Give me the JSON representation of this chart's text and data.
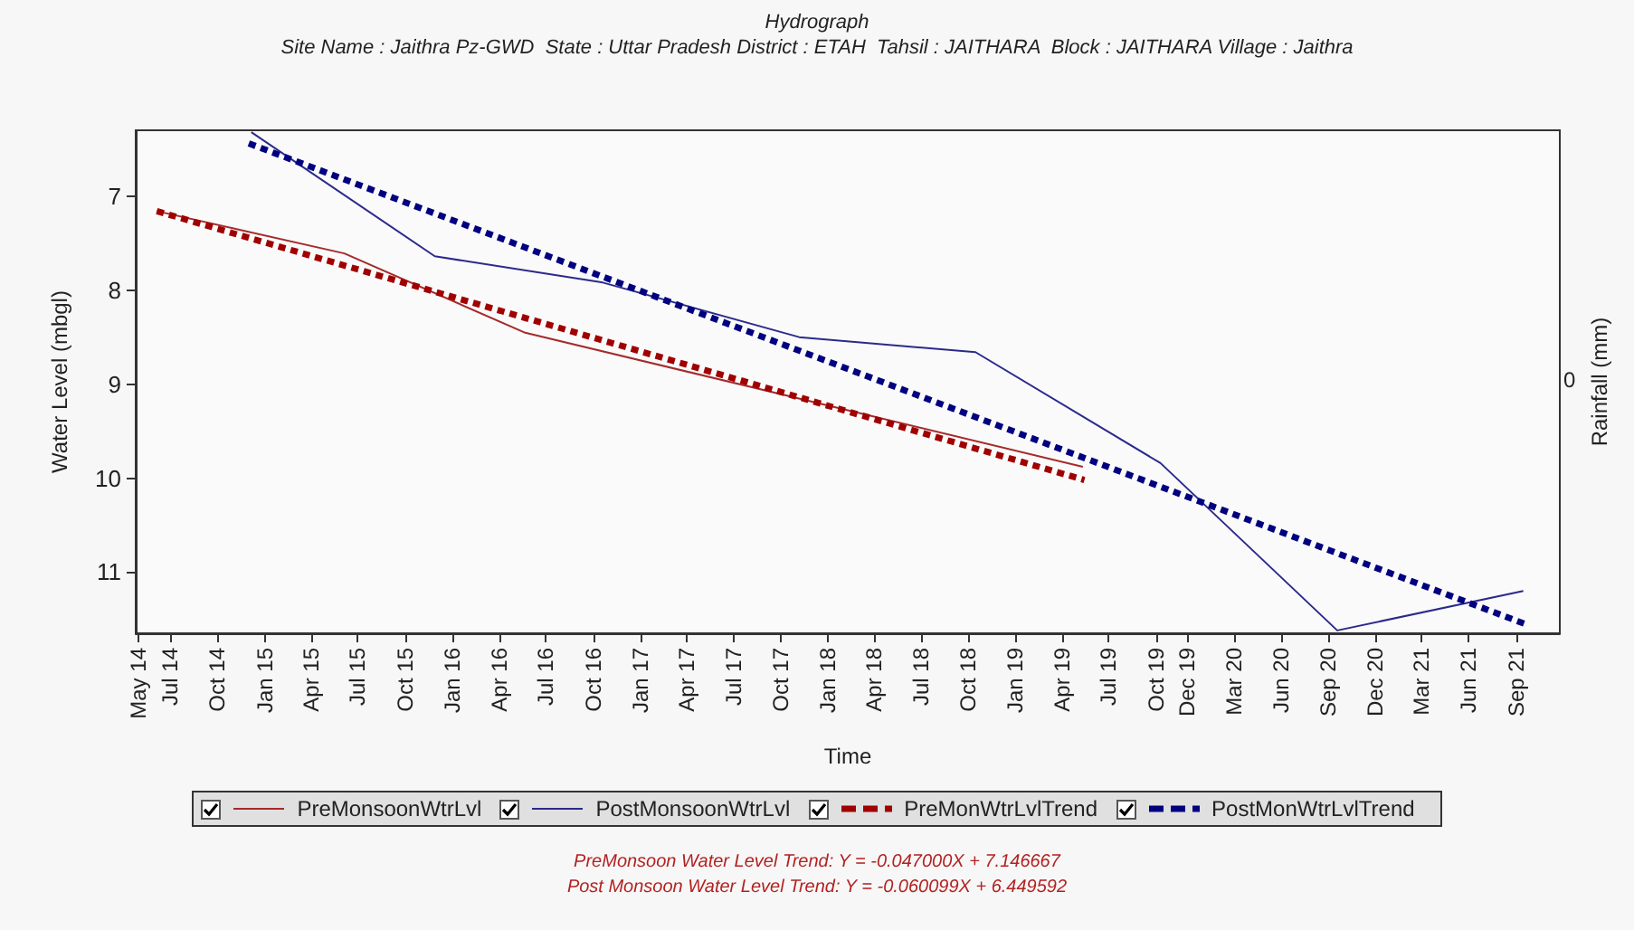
{
  "chart_data": {
    "type": "line",
    "title": "Hydrograph",
    "subtitle": "Site Name : Jaithra Pz-GWD  State : Uttar Pradesh District : ETAH  Tahsil : JAITHARA  Block : JAITHARA Village : Jaithra",
    "xlabel": "Time",
    "ylabel": "Water Level (mbgl)",
    "y2label": "Rainfall (mm)",
    "annotations": [
      "0",
      "PreMonsoon Water Level Trend: Y = -0.047000X + 7.146667",
      "Post Monsoon Water Level Trend: Y = -0.060099X + 6.449592"
    ],
    "xlim": [
      "2014-04-25",
      "2021-11-25"
    ],
    "xticks": [
      {
        "value": "2014-05",
        "label": "May 14"
      },
      {
        "value": "2014-07",
        "label": "Jul 14"
      },
      {
        "value": "2014-10",
        "label": "Oct 14"
      },
      {
        "value": "2015-01",
        "label": "Jan 15"
      },
      {
        "value": "2015-04",
        "label": "Apr 15"
      },
      {
        "value": "2015-07",
        "label": "Jul 15"
      },
      {
        "value": "2015-10",
        "label": "Oct 15"
      },
      {
        "value": "2016-01",
        "label": "Jan 16"
      },
      {
        "value": "2016-04",
        "label": "Apr 16"
      },
      {
        "value": "2016-07",
        "label": "Jul 16"
      },
      {
        "value": "2016-10",
        "label": "Oct 16"
      },
      {
        "value": "2017-01",
        "label": "Jan 17"
      },
      {
        "value": "2017-04",
        "label": "Apr 17"
      },
      {
        "value": "2017-07",
        "label": "Jul 17"
      },
      {
        "value": "2017-10",
        "label": "Oct 17"
      },
      {
        "value": "2018-01",
        "label": "Jan 18"
      },
      {
        "value": "2018-04",
        "label": "Apr 18"
      },
      {
        "value": "2018-07",
        "label": "Jul 18"
      },
      {
        "value": "2018-10",
        "label": "Oct 18"
      },
      {
        "value": "2019-01",
        "label": "Jan 19"
      },
      {
        "value": "2019-04",
        "label": "Apr 19"
      },
      {
        "value": "2019-07",
        "label": "Jul 19"
      },
      {
        "value": "2019-10",
        "label": "Oct 19"
      },
      {
        "value": "2019-12",
        "label": "Dec 19"
      },
      {
        "value": "2020-03",
        "label": "Mar 20"
      },
      {
        "value": "2020-06",
        "label": "Jun 20"
      },
      {
        "value": "2020-09",
        "label": "Sep 20"
      },
      {
        "value": "2020-12",
        "label": "Dec 20"
      },
      {
        "value": "2021-03",
        "label": "Mar 21"
      },
      {
        "value": "2021-06",
        "label": "Jun 21"
      },
      {
        "value": "2021-09",
        "label": "Sep 21"
      }
    ],
    "ylim": [
      11.65,
      6.3
    ],
    "yticks": [
      7,
      8,
      9,
      10,
      11
    ],
    "grid": false,
    "legend": "bottom",
    "marker": "none",
    "series": [
      {
        "name": "PreMonsoonWtrLvl",
        "color": "#a52a2a",
        "line_style": "solid",
        "x": [
          "2014-06-05",
          "2015-06-05",
          "2016-05-20",
          "2019-05-12"
        ],
        "values": [
          7.16,
          7.61,
          8.45,
          9.88
        ]
      },
      {
        "name": "PostMonsoonWtrLvl",
        "color": "#2a2a8c",
        "line_style": "solid",
        "x": [
          "2014-12-06",
          "2015-11-28",
          "2016-10-20",
          "2017-11-06",
          "2018-10-15",
          "2019-10-10",
          "2020-09-18",
          "2021-09-15"
        ],
        "values": [
          6.32,
          7.64,
          7.92,
          8.5,
          8.66,
          9.84,
          11.62,
          11.2
        ]
      },
      {
        "name": "PreMonWtrLvlTrend",
        "color": "#a00000",
        "line_style": "dashed",
        "x": [
          "2014-06-05",
          "2019-05-15"
        ],
        "values": [
          7.16,
          10.02
        ]
      },
      {
        "name": "PostMonWtrLvlTrend",
        "color": "#000080",
        "line_style": "dashed",
        "x": [
          "2014-12-01",
          "2021-09-18"
        ],
        "values": [
          6.44,
          11.55
        ]
      }
    ]
  }
}
